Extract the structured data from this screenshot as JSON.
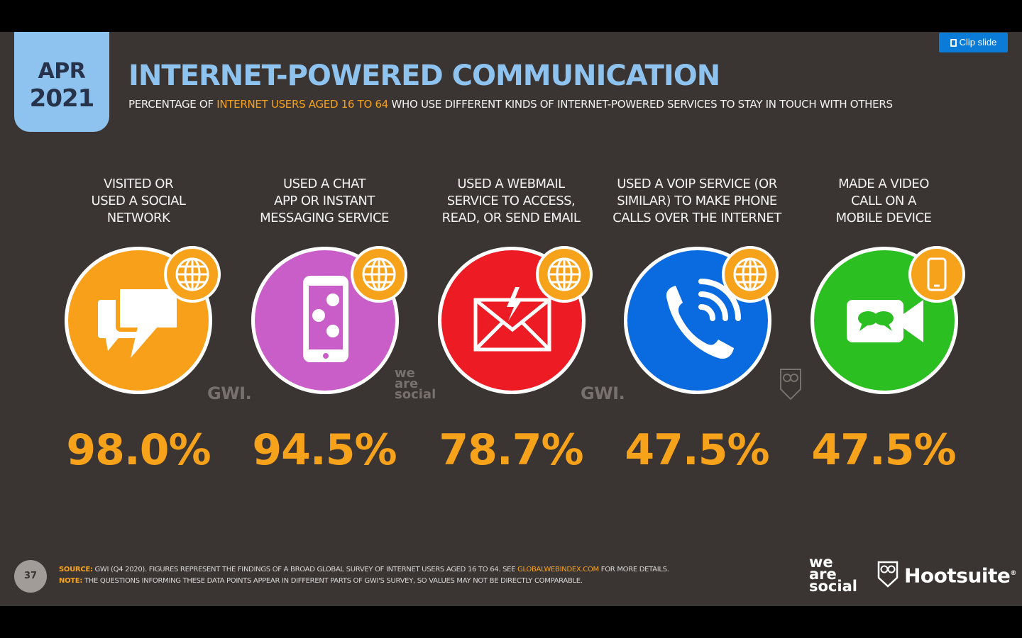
{
  "header": {
    "date_month": "APR",
    "date_year": "2021",
    "title": "INTERNET-POWERED COMMUNICATION",
    "subtitle_pre": "PERCENTAGE OF ",
    "subtitle_highlight": "INTERNET USERS AGED 16 TO 64",
    "subtitle_post": " WHO USE DIFFERENT KINDS OF INTERNET-POWERED SERVICES TO STAY IN TOUCH WITH OTHERS",
    "clip_button": "Clip slide"
  },
  "items": [
    {
      "label_lines": [
        "VISITED OR",
        "USED A SOCIAL",
        "NETWORK"
      ],
      "value": "98.0%",
      "color": "#f9a01b",
      "icon": "speech-bubbles-icon",
      "badge_icon": "globe-icon"
    },
    {
      "label_lines": [
        "USED A CHAT",
        "APP OR INSTANT",
        "MESSAGING SERVICE"
      ],
      "value": "94.5%",
      "color": "#c95ec9",
      "icon": "smartphone-chat-icon",
      "badge_icon": "globe-icon"
    },
    {
      "label_lines": [
        "USED A WEBMAIL",
        "SERVICE TO ACCESS,",
        "READ, OR SEND EMAIL"
      ],
      "value": "78.7%",
      "color": "#ed1c24",
      "icon": "envelope-icon",
      "badge_icon": "globe-icon"
    },
    {
      "label_lines": [
        "USED A VOIP SERVICE (OR",
        "SIMILAR) TO MAKE PHONE",
        "CALLS OVER THE INTERNET"
      ],
      "value": "47.5%",
      "color": "#0a6ae0",
      "icon": "phone-call-icon",
      "badge_icon": "globe-icon"
    },
    {
      "label_lines": [
        "MADE A VIDEO",
        "CALL ON A",
        "MOBILE DEVICE"
      ],
      "value": "47.5%",
      "color": "#2bbf22",
      "icon": "video-camera-icon",
      "badge_icon": "smartphone-icon"
    }
  ],
  "watermarks": {
    "gwi": "GWI.",
    "was_lines": [
      "we",
      "are",
      "social"
    ]
  },
  "footer": {
    "page_number": "37",
    "source_label": "SOURCE:",
    "source_text": " GWI (Q4 2020). FIGURES REPRESENT THE FINDINGS OF A BROAD GLOBAL SURVEY OF INTERNET USERS AGED 16 TO 64. SEE ",
    "source_link": "GLOBALWEBINDEX.COM",
    "source_post": " FOR MORE DETAILS.",
    "note_label": "NOTE:",
    "note_text": " THE QUESTIONS INFORMING THESE DATA POINTS APPEAR IN DIFFERENT PARTS OF GWI'S SURVEY, SO VALUES MAY NOT BE DIRECTLY COMPARABLE.",
    "brand_was_lines": [
      "we",
      "are",
      "social"
    ],
    "brand_hootsuite": "Hootsuite",
    "brand_hootsuite_mark": "®"
  }
}
